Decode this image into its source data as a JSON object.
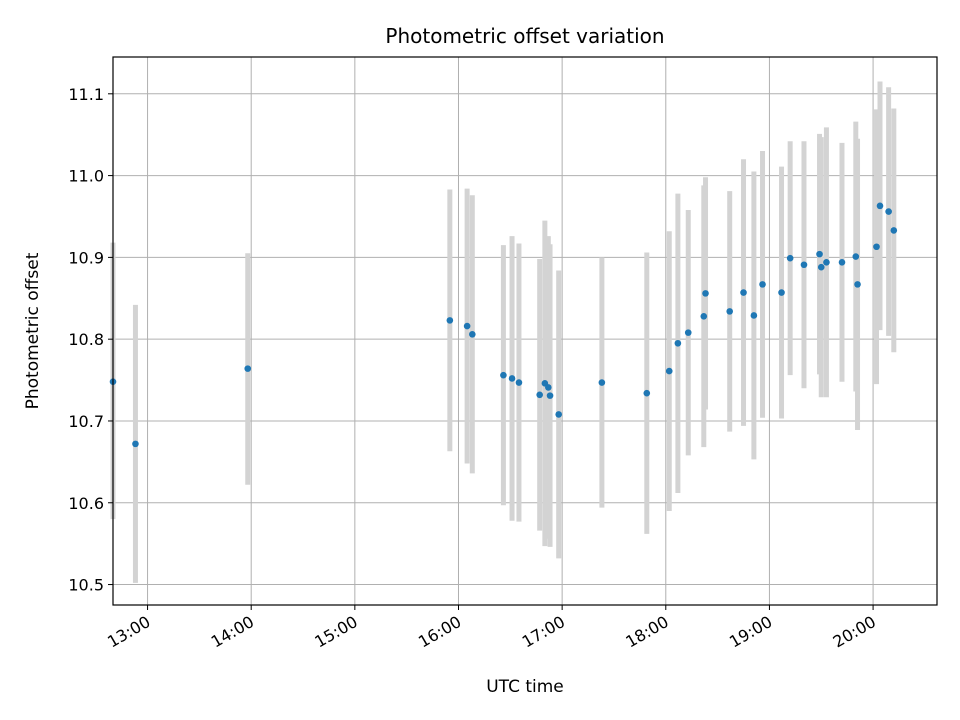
{
  "chart_data": {
    "type": "scatter",
    "title": "Photometric offset variation",
    "xlabel": "UTC time",
    "ylabel": "Photometric offset",
    "xlim": [
      "12:40",
      "20:37"
    ],
    "ylim": [
      10.475,
      11.145
    ],
    "xticks": [
      "13:00",
      "14:00",
      "15:00",
      "16:00",
      "17:00",
      "18:00",
      "19:00",
      "20:00"
    ],
    "yticks": [
      "10.5",
      "10.6",
      "10.7",
      "10.8",
      "10.9",
      "11.0",
      "11.1"
    ],
    "grid": true,
    "colors": {
      "point": "#1f77b4",
      "errorbar": "#d3d3d3",
      "grid": "#b0b0b0"
    },
    "points": [
      {
        "x": "12:40",
        "y": 10.748,
        "lo": 10.58,
        "hi": 10.918
      },
      {
        "x": "12:53",
        "y": 10.672,
        "lo": 10.502,
        "hi": 10.842
      },
      {
        "x": "13:58",
        "y": 10.764,
        "lo": 10.622,
        "hi": 10.905
      },
      {
        "x": "15:55",
        "y": 10.823,
        "lo": 10.663,
        "hi": 10.983
      },
      {
        "x": "16:05",
        "y": 10.816,
        "lo": 10.648,
        "hi": 10.984
      },
      {
        "x": "16:08",
        "y": 10.806,
        "lo": 10.636,
        "hi": 10.976
      },
      {
        "x": "16:26",
        "y": 10.756,
        "lo": 10.597,
        "hi": 10.915
      },
      {
        "x": "16:31",
        "y": 10.752,
        "lo": 10.578,
        "hi": 10.926
      },
      {
        "x": "16:35",
        "y": 10.747,
        "lo": 10.577,
        "hi": 10.917
      },
      {
        "x": "16:47",
        "y": 10.732,
        "lo": 10.566,
        "hi": 10.898
      },
      {
        "x": "16:50",
        "y": 10.746,
        "lo": 10.547,
        "hi": 10.945
      },
      {
        "x": "16:52",
        "y": 10.741,
        "lo": 10.556,
        "hi": 10.926
      },
      {
        "x": "16:53",
        "y": 10.731,
        "lo": 10.546,
        "hi": 10.916
      },
      {
        "x": "16:58",
        "y": 10.708,
        "lo": 10.532,
        "hi": 10.884
      },
      {
        "x": "17:23",
        "y": 10.747,
        "lo": 10.594,
        "hi": 10.9
      },
      {
        "x": "17:49",
        "y": 10.734,
        "lo": 10.562,
        "hi": 10.906
      },
      {
        "x": "18:02",
        "y": 10.761,
        "lo": 10.59,
        "hi": 10.932
      },
      {
        "x": "18:07",
        "y": 10.795,
        "lo": 10.612,
        "hi": 10.978
      },
      {
        "x": "18:13",
        "y": 10.808,
        "lo": 10.658,
        "hi": 10.958
      },
      {
        "x": "18:22",
        "y": 10.828,
        "lo": 10.668,
        "hi": 10.988
      },
      {
        "x": "18:23",
        "y": 10.856,
        "lo": 10.714,
        "hi": 10.998
      },
      {
        "x": "18:37",
        "y": 10.834,
        "lo": 10.687,
        "hi": 10.981
      },
      {
        "x": "18:45",
        "y": 10.857,
        "lo": 10.694,
        "hi": 11.02
      },
      {
        "x": "18:51",
        "y": 10.829,
        "lo": 10.653,
        "hi": 11.005
      },
      {
        "x": "18:56",
        "y": 10.867,
        "lo": 10.704,
        "hi": 11.03
      },
      {
        "x": "19:07",
        "y": 10.857,
        "lo": 10.703,
        "hi": 11.011
      },
      {
        "x": "19:12",
        "y": 10.899,
        "lo": 10.756,
        "hi": 11.042
      },
      {
        "x": "19:20",
        "y": 10.891,
        "lo": 10.74,
        "hi": 11.042
      },
      {
        "x": "19:29",
        "y": 10.904,
        "lo": 10.757,
        "hi": 11.051
      },
      {
        "x": "19:30",
        "y": 10.888,
        "lo": 10.729,
        "hi": 11.047
      },
      {
        "x": "19:33",
        "y": 10.894,
        "lo": 10.729,
        "hi": 11.059
      },
      {
        "x": "19:42",
        "y": 10.894,
        "lo": 10.748,
        "hi": 11.04
      },
      {
        "x": "19:50",
        "y": 10.901,
        "lo": 10.736,
        "hi": 11.066
      },
      {
        "x": "19:51",
        "y": 10.867,
        "lo": 10.689,
        "hi": 11.045
      },
      {
        "x": "20:02",
        "y": 10.913,
        "lo": 10.745,
        "hi": 11.081
      },
      {
        "x": "20:04",
        "y": 10.963,
        "lo": 10.811,
        "hi": 11.115
      },
      {
        "x": "20:09",
        "y": 10.956,
        "lo": 10.804,
        "hi": 11.108
      },
      {
        "x": "20:12",
        "y": 10.933,
        "lo": 10.784,
        "hi": 11.082
      }
    ]
  }
}
